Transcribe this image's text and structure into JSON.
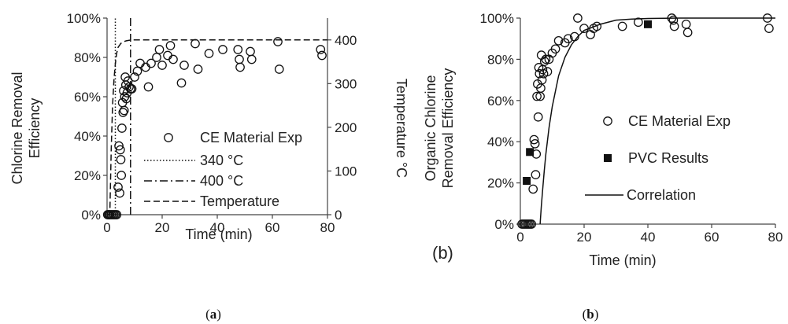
{
  "chart_data": [
    {
      "type": "scatter",
      "xlabel": "Time (min)",
      "ylabel": "Chlorine Removal Efficiency",
      "y2label": "Temperature °C",
      "xlim": [
        0,
        80
      ],
      "ylim": [
        0,
        100
      ],
      "y2lim": [
        0,
        450
      ],
      "x_ticks": [
        "0",
        "20",
        "40",
        "60",
        "80"
      ],
      "y_ticks": [
        "0%",
        "20%",
        "40%",
        "60%",
        "80%",
        "100%"
      ],
      "y2_ticks": [
        "0",
        "100",
        "200",
        "300",
        "400"
      ],
      "legend_position": "bottom-right",
      "caption_open": "(",
      "caption_letter": "a",
      "caption_close": ")",
      "series": [
        {
          "name": "CE Material Exp",
          "marker": "open-circle",
          "x": [
            0.2,
            0.6,
            1.0,
            1.5,
            2.0,
            2.5,
            3.0,
            3.5,
            4.0,
            4.3,
            4.6,
            4.8,
            5.0,
            5.2,
            5.4,
            5.6,
            5.8,
            6.0,
            6.2,
            6.4,
            6.6,
            6.8,
            7.0,
            7.3,
            7.6,
            8.0,
            8.5,
            9.0,
            10.0,
            11.0,
            12.0,
            14.0,
            15.0,
            16.0,
            18.0,
            19.0,
            20.0,
            22.0,
            23.0,
            24.0,
            27.0,
            28.0,
            32.0,
            33.0,
            37.0,
            42.0,
            47.5,
            48.0,
            48.3,
            52.0,
            52.5,
            62.0,
            62.5,
            77.5,
            78.0
          ],
          "y": [
            0,
            0,
            0,
            0,
            0,
            0,
            0,
            0,
            14,
            35,
            11,
            33,
            28,
            20,
            44,
            57,
            52,
            63,
            53,
            60,
            70,
            66,
            59,
            62,
            68,
            65,
            64,
            64,
            70,
            73,
            77,
            75,
            65,
            77,
            80,
            84,
            76,
            81,
            86,
            79,
            67,
            76,
            87,
            74,
            82,
            84,
            84,
            79,
            75,
            83,
            79,
            88,
            74,
            84,
            81
          ]
        },
        {
          "name": "340 °C",
          "style": "dotted",
          "x": [
            3.0,
            3.0
          ],
          "y": [
            0,
            100
          ]
        },
        {
          "name": "400 °C",
          "style": "dash-dot",
          "x": [
            8.5,
            8.5
          ],
          "y": [
            0,
            100
          ]
        },
        {
          "name": "Temperature",
          "style": "dashed",
          "axis": "y2",
          "x": [
            0,
            1.0,
            1.5,
            2.0,
            2.5,
            3.0,
            3.5,
            4.0,
            5.0,
            6.0,
            7.0,
            8.0,
            9.0,
            10.0,
            15.0,
            20.0,
            40.0,
            60.0,
            80.0
          ],
          "y": [
            0,
            0,
            150,
            250,
            310,
            345,
            370,
            383,
            392,
            396,
            398,
            399,
            400,
            400,
            400,
            400,
            400,
            400,
            400
          ]
        }
      ]
    },
    {
      "type": "scatter",
      "xlabel": "Time (min)",
      "ylabel": "Organic Chlorine Removal Efficiency",
      "xlim": [
        0,
        80
      ],
      "ylim": [
        0,
        100
      ],
      "x_ticks": [
        "0",
        "20",
        "40",
        "60",
        "80"
      ],
      "y_ticks": [
        "0%",
        "20%",
        "40%",
        "60%",
        "80%",
        "100%"
      ],
      "legend_position": "center-right",
      "panel_label": "(b)",
      "caption_open": "(",
      "caption_letter": "b",
      "caption_close": ")",
      "series": [
        {
          "name": "CE Material Exp",
          "marker": "open-circle",
          "x": [
            0.5,
            1.0,
            1.5,
            2.0,
            2.5,
            3.0,
            3.5,
            4.0,
            4.3,
            4.6,
            4.8,
            5.0,
            5.2,
            5.4,
            5.6,
            5.8,
            6.0,
            6.2,
            6.4,
            6.6,
            6.8,
            7.0,
            7.3,
            7.6,
            8.0,
            8.5,
            9.0,
            10.0,
            11.0,
            12.0,
            14.0,
            15.0,
            17.0,
            18.0,
            20.0,
            22.0,
            23.0,
            24.0,
            32.0,
            37.0,
            47.5,
            48.0,
            48.3,
            52.0,
            52.5,
            77.5,
            78.0
          ],
          "y": [
            0,
            0,
            0,
            0,
            0,
            0,
            0,
            17,
            41,
            39,
            24,
            34,
            62,
            68,
            52,
            76,
            73,
            62,
            66,
            82,
            70,
            75,
            73,
            79,
            80,
            74,
            80,
            83,
            85,
            89,
            88,
            90,
            91,
            100,
            95,
            92,
            95,
            96,
            96,
            98,
            100,
            99,
            96,
            97,
            93,
            100,
            95
          ]
        },
        {
          "name": "PVC Results",
          "marker": "filled-square",
          "x": [
            2.0,
            3.0,
            40.0
          ],
          "y": [
            21,
            35,
            97
          ]
        },
        {
          "name": "Correlation",
          "style": "solid",
          "x": [
            6.2,
            6.6,
            7.0,
            7.5,
            8.0,
            9.0,
            10.0,
            12.0,
            14.0,
            16.0,
            18.0,
            20.0,
            25.0,
            30.0,
            35.0,
            40.0,
            50.0,
            60.0,
            70.0,
            80.0
          ],
          "y": [
            0,
            9,
            17,
            26,
            34,
            47,
            57,
            72,
            81,
            87,
            91,
            94,
            97,
            99,
            99.5,
            99.8,
            100,
            100,
            100,
            100
          ]
        }
      ]
    }
  ]
}
